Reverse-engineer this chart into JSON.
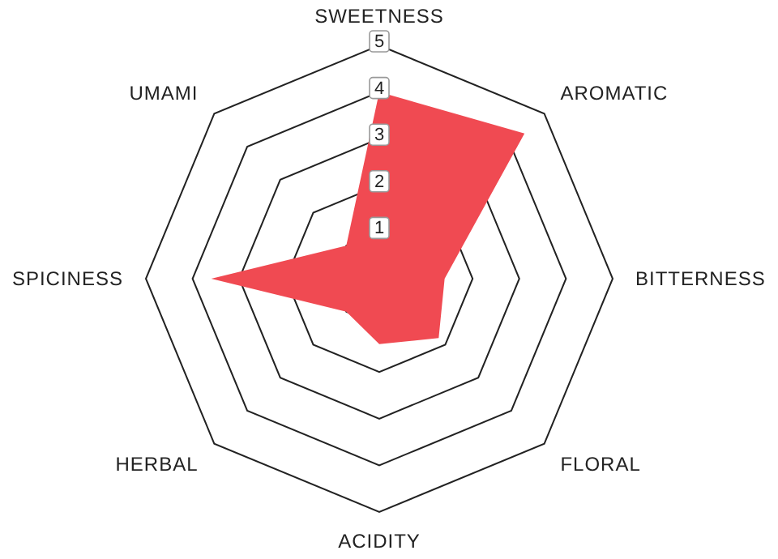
{
  "chart_data": {
    "type": "radar",
    "categories": [
      "SWEETNESS",
      "AROMATIC",
      "BITTERNESS",
      "FLORAL",
      "ACIDITY",
      "HERBAL",
      "SPICINESS",
      "UMAMI"
    ],
    "series": [
      {
        "color": "#f04a52",
        "values": [
          4,
          4.4,
          1.4,
          1.8,
          1.4,
          1,
          3.6,
          1
        ]
      }
    ],
    "ylim": [
      0,
      5
    ],
    "yticks": [
      1,
      2,
      3,
      4,
      5
    ],
    "grid": true,
    "legend": false
  }
}
